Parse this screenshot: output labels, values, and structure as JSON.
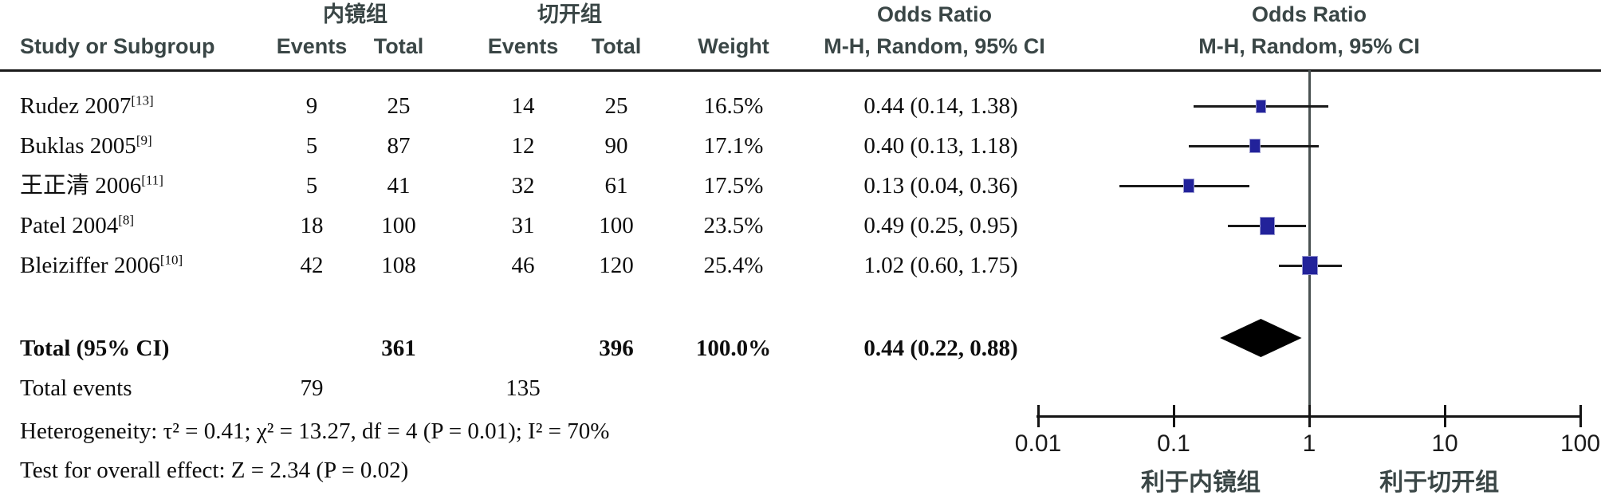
{
  "headers": {
    "study": "Study or Subgroup",
    "group1": "内镜组",
    "group2": "切开组",
    "events": "Events",
    "total": "Total",
    "weight": "Weight",
    "odds_ratio": "Odds Ratio",
    "mh_random": "M-H, Random, 95% CI"
  },
  "chart_data": {
    "type": "forest",
    "title": "Odds Ratio, M-H, Random, 95% CI",
    "x_scale": "log10",
    "x_range": [
      0.01,
      100
    ],
    "studies": [
      {
        "name": "Rudez 2007",
        "ref": "[13]",
        "events1": "9",
        "total1": "25",
        "events2": "14",
        "total2": "25",
        "weight": "16.5%",
        "or_text": "0.44 (0.14, 1.38)",
        "or": 0.44,
        "ci_low": 0.14,
        "ci_high": 1.38
      },
      {
        "name": "Buklas 2005",
        "ref": "[9]",
        "events1": "5",
        "total1": "87",
        "events2": "12",
        "total2": "90",
        "weight": "17.1%",
        "or_text": "0.40 (0.13, 1.18)",
        "or": 0.4,
        "ci_low": 0.13,
        "ci_high": 1.18
      },
      {
        "name": "王正清 2006",
        "ref": "[11]",
        "events1": "5",
        "total1": "41",
        "events2": "32",
        "total2": "61",
        "weight": "17.5%",
        "or_text": "0.13 (0.04, 0.36)",
        "or": 0.13,
        "ci_low": 0.04,
        "ci_high": 0.36
      },
      {
        "name": "Patel 2004",
        "ref": "[8]",
        "events1": "18",
        "total1": "100",
        "events2": "31",
        "total2": "100",
        "weight": "23.5%",
        "or_text": "0.49 (0.25, 0.95)",
        "or": 0.49,
        "ci_low": 0.25,
        "ci_high": 0.95
      },
      {
        "name": "Bleiziffer 2006",
        "ref": "[10]",
        "events1": "42",
        "total1": "108",
        "events2": "46",
        "total2": "120",
        "weight": "25.4%",
        "or_text": "1.02 (0.60, 1.75)",
        "or": 1.02,
        "ci_low": 0.6,
        "ci_high": 1.75
      }
    ],
    "total": {
      "label": "Total (95% CI)",
      "total1": "361",
      "total2": "396",
      "weight": "100.0%",
      "or_text": "0.44 (0.22, 0.88)",
      "or": 0.44,
      "ci_low": 0.22,
      "ci_high": 0.88,
      "events_label": "Total events",
      "events1": "79",
      "events2": "135"
    },
    "footer": {
      "heterogeneity": "Heterogeneity: τ² = 0.41; χ² = 13.27, df = 4 (P = 0.01); I² = 70%",
      "overall_effect": "Test for overall effect: Z = 2.34 (P = 0.02)"
    },
    "axis": {
      "tick_values": [
        0.01,
        0.1,
        1,
        10,
        100
      ],
      "tick_labels": [
        "0.01",
        "0.1",
        "1",
        "10",
        "100"
      ],
      "favor_left": "利于内镜组",
      "favor_right": "利于切开组",
      "favor_left_x": 0.3,
      "favor_right_x": 0.74
    },
    "colors": {
      "square": "#22229a",
      "diamond": "#000000",
      "header_text": "#3a4646",
      "line": "#1a1a1a"
    }
  }
}
